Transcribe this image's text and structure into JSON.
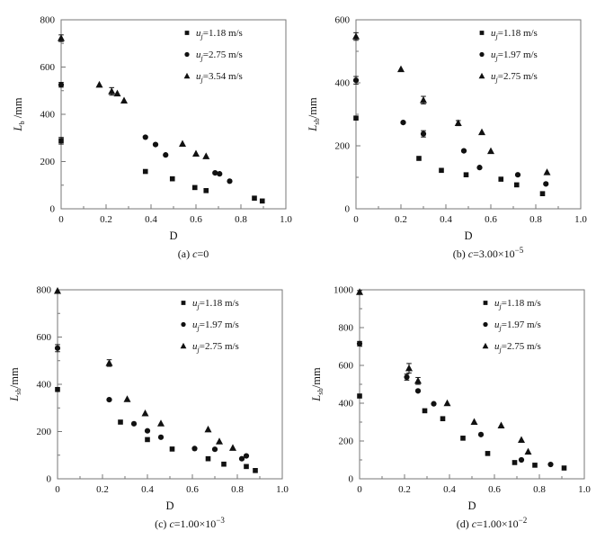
{
  "page": {
    "background": "#ffffff",
    "ink_color": "#111111",
    "axis_color": "#777777"
  },
  "chart_data": [
    {
      "id": "a",
      "type": "scatter",
      "caption_prefix": "(a) ",
      "caption_var": "c",
      "caption_eq": "=0",
      "caption_exp": "",
      "xlabel": "D",
      "ylabel_var": "L",
      "ylabel_sub": "b",
      "ylabel_unit": " /mm",
      "xlim": [
        0,
        1.0
      ],
      "ylim": [
        0,
        800
      ],
      "xticks": [
        0,
        0.2,
        0.4,
        0.6,
        0.8,
        1.0
      ],
      "xtick_labels": [
        "0",
        "0.2",
        "0.4",
        "0.6",
        "0.8",
        "1.0"
      ],
      "yticks": [
        0,
        200,
        400,
        600,
        800
      ],
      "ytick_labels": [
        "0",
        "200",
        "400",
        "600",
        "800"
      ],
      "grid": false,
      "legend_position": "top-right",
      "series": [
        {
          "marker": "square",
          "label_var": "u",
          "label_sub": "j",
          "label_rest": "=1.18 m/s",
          "points": [
            [
              0,
              288,
              14
            ],
            [
              0.375,
              158
            ],
            [
              0.495,
              127
            ],
            [
              0.595,
              90
            ],
            [
              0.645,
              77
            ],
            [
              0.86,
              45
            ],
            [
              0.895,
              33
            ]
          ]
        },
        {
          "marker": "circle",
          "label_var": "u",
          "label_sub": "j",
          "label_rest": "=2.75 m/s",
          "points": [
            [
              0,
              525,
              10
            ],
            [
              0.375,
              303
            ],
            [
              0.42,
              272
            ],
            [
              0.465,
              228
            ],
            [
              0.685,
              152
            ],
            [
              0.705,
              148
            ],
            [
              0.75,
              117
            ]
          ]
        },
        {
          "marker": "triangle",
          "label_var": "u",
          "label_sub": "j",
          "label_rest": "=3.54 m/s",
          "points": [
            [
              0,
              722,
              14
            ],
            [
              0.17,
              525
            ],
            [
              0.225,
              497,
              16
            ],
            [
              0.25,
              488
            ],
            [
              0.28,
              458
            ],
            [
              0.54,
              275
            ],
            [
              0.6,
              233
            ],
            [
              0.645,
              222
            ]
          ]
        }
      ]
    },
    {
      "id": "b",
      "type": "scatter",
      "caption_prefix": "(b) ",
      "caption_var": "c",
      "caption_eq": "=3.00×10",
      "caption_exp": "−5",
      "xlabel": "D",
      "ylabel_var": "L",
      "ylabel_sub": "sb",
      "ylabel_unit": "/mm",
      "xlim": [
        0,
        1.0
      ],
      "ylim": [
        0,
        600
      ],
      "xticks": [
        0,
        0.2,
        0.4,
        0.6,
        0.8,
        1.0
      ],
      "xtick_labels": [
        "0",
        "0.2",
        "0.4",
        "0.6",
        "0.8",
        "1.0"
      ],
      "yticks": [
        0,
        200,
        400,
        600
      ],
      "ytick_labels": [
        "0",
        "200",
        "400",
        "600"
      ],
      "grid": false,
      "legend_position": "top-right",
      "series": [
        {
          "marker": "square",
          "label_var": "u",
          "label_sub": "j",
          "label_rest": "=1.18 m/s",
          "points": [
            [
              0,
              288
            ],
            [
              0.28,
              160
            ],
            [
              0.38,
              122
            ],
            [
              0.49,
              108
            ],
            [
              0.645,
              94
            ],
            [
              0.715,
              76
            ],
            [
              0.83,
              48
            ]
          ]
        },
        {
          "marker": "circle",
          "label_var": "u",
          "label_sub": "j",
          "label_rest": "=1.97 m/s",
          "points": [
            [
              0,
              408,
              12
            ],
            [
              0.21,
              274
            ],
            [
              0.3,
              238,
              10
            ],
            [
              0.48,
              184
            ],
            [
              0.55,
              131
            ],
            [
              0.72,
              108
            ],
            [
              0.845,
              79
            ]
          ]
        },
        {
          "marker": "triangle",
          "label_var": "u",
          "label_sub": "j",
          "label_rest": "=2.75 m/s",
          "points": [
            [
              0,
              547,
              12
            ],
            [
              0.2,
              443
            ],
            [
              0.3,
              345,
              12
            ],
            [
              0.455,
              272,
              8
            ],
            [
              0.56,
              243
            ],
            [
              0.6,
              183
            ],
            [
              0.85,
              116
            ]
          ]
        }
      ]
    },
    {
      "id": "c",
      "type": "scatter",
      "caption_prefix": "(c) ",
      "caption_var": "c",
      "caption_eq": "=1.00×10",
      "caption_exp": "−3",
      "xlabel": "D",
      "ylabel_var": "L",
      "ylabel_sub": "sb",
      "ylabel_unit": "/mm",
      "xlim": [
        0,
        1.0
      ],
      "ylim": [
        0,
        800
      ],
      "xticks": [
        0,
        0.2,
        0.4,
        0.6,
        0.8,
        1.0
      ],
      "xtick_labels": [
        "0",
        "0.2",
        "0.4",
        "0.6",
        "0.8",
        "1.0"
      ],
      "yticks": [
        0,
        200,
        400,
        600,
        800
      ],
      "ytick_labels": [
        "0",
        "200",
        "400",
        "600",
        "800"
      ],
      "grid": false,
      "legend_position": "top-right",
      "series": [
        {
          "marker": "square",
          "label_var": "u",
          "label_sub": "j",
          "label_rest": "=1.18 m/s",
          "points": [
            [
              0,
              378
            ],
            [
              0.28,
              240
            ],
            [
              0.4,
              166
            ],
            [
              0.51,
              126
            ],
            [
              0.67,
              85
            ],
            [
              0.74,
              62
            ],
            [
              0.84,
              52
            ],
            [
              0.88,
              35
            ]
          ]
        },
        {
          "marker": "circle",
          "label_var": "u",
          "label_sub": "j",
          "label_rest": "=1.97 m/s",
          "points": [
            [
              0,
              553,
              15
            ],
            [
              0.23,
              335
            ],
            [
              0.34,
              233
            ],
            [
              0.4,
              203
            ],
            [
              0.46,
              176
            ],
            [
              0.61,
              128
            ],
            [
              0.7,
              125
            ],
            [
              0.82,
              85
            ],
            [
              0.84,
              97
            ]
          ]
        },
        {
          "marker": "triangle",
          "label_var": "u",
          "label_sub": "j",
          "label_rest": "=2.75 m/s",
          "points": [
            [
              0,
              795,
              10
            ],
            [
              0.23,
              490,
              14
            ],
            [
              0.31,
              337
            ],
            [
              0.39,
              277
            ],
            [
              0.46,
              234
            ],
            [
              0.67,
              209
            ],
            [
              0.72,
              158
            ],
            [
              0.78,
              131
            ]
          ]
        }
      ]
    },
    {
      "id": "d",
      "type": "scatter",
      "caption_prefix": "(d) ",
      "caption_var": "c",
      "caption_eq": "=1.00×10",
      "caption_exp": "−2",
      "xlabel": "D",
      "ylabel_var": "L",
      "ylabel_sub": "sb",
      "ylabel_unit": "/mm",
      "xlim": [
        0,
        1.0
      ],
      "ylim": [
        0,
        1000
      ],
      "xticks": [
        0,
        0.2,
        0.4,
        0.6,
        0.8,
        1.0
      ],
      "xtick_labels": [
        "0",
        "0.2",
        "0.4",
        "0.6",
        "0.8",
        "1.0"
      ],
      "yticks": [
        0,
        200,
        400,
        600,
        800,
        1000
      ],
      "ytick_labels": [
        "0",
        "200",
        "400",
        "600",
        "800",
        "1000"
      ],
      "grid": false,
      "legend_position": "top-right",
      "series": [
        {
          "marker": "square",
          "label_var": "u",
          "label_sub": "j",
          "label_rest": "=1.18 m/s",
          "points": [
            [
              0,
              438
            ],
            [
              0.29,
              360
            ],
            [
              0.37,
              318
            ],
            [
              0.46,
              215
            ],
            [
              0.57,
              134
            ],
            [
              0.69,
              86
            ],
            [
              0.78,
              72
            ],
            [
              0.91,
              57
            ]
          ]
        },
        {
          "marker": "circle",
          "label_var": "u",
          "label_sub": "j",
          "label_rest": "=1.97 m/s",
          "points": [
            [
              0,
              715,
              12
            ],
            [
              0.21,
              538,
              16
            ],
            [
              0.26,
              465
            ],
            [
              0.33,
              397
            ],
            [
              0.54,
              234
            ],
            [
              0.72,
              100
            ],
            [
              0.85,
              76
            ]
          ]
        },
        {
          "marker": "triangle",
          "label_var": "u",
          "label_sub": "j",
          "label_rest": "=2.75 m/s",
          "points": [
            [
              0,
              988,
              8
            ],
            [
              0.22,
              585,
              25
            ],
            [
              0.26,
              518,
              18
            ],
            [
              0.39,
              400
            ],
            [
              0.51,
              301
            ],
            [
              0.63,
              282
            ],
            [
              0.72,
              206
            ],
            [
              0.75,
              143
            ]
          ]
        }
      ]
    }
  ]
}
